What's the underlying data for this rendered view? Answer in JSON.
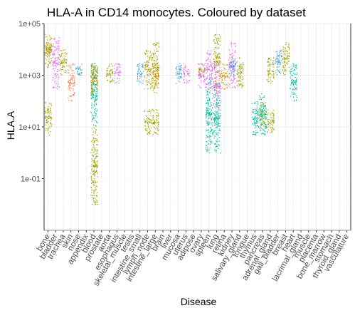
{
  "chart_data": {
    "type": "scatter",
    "title": "HLA-A in CD14 monocytes. Coloured by dataset",
    "xlabel": "Disease",
    "ylabel": "HLA.A",
    "y_scale": "log10",
    "ylim": [
      0.001,
      100000
    ],
    "y_ticks": [
      {
        "value": 0.1,
        "label": "1e-01"
      },
      {
        "value": 10,
        "label": "1e+01"
      },
      {
        "value": 1000,
        "label": "1e+03"
      },
      {
        "value": 100000,
        "label": "1e+05"
      }
    ],
    "grid": true,
    "legend": "none",
    "categories": [
      "bone",
      "bladder",
      "trachea",
      "skin",
      "nose",
      "appendix",
      "blood",
      "prostate",
      "aorta",
      "esophagus",
      "skeletal_muscle",
      "testis",
      "intestine_small",
      "lymph_node",
      "intestine_large",
      "brain",
      "liver",
      "mucosa",
      "uterus",
      "adipose",
      "ovary",
      "spleen",
      "lung",
      "retina",
      "kidney",
      "salivary_gland",
      "tongue",
      "thymus",
      "pancreas",
      "adrenal_gland",
      "gall_bladder",
      "breast",
      "heart",
      "lacrimal_gland",
      "muscle",
      "placenta",
      "bone_marrow",
      "stomach",
      "thyroid_gland",
      "vasculature"
    ],
    "series": [
      {
        "name": "",
        "color": "#9aa300",
        "segments": [
          {
            "cat": "bone",
            "low": 2000,
            "high": 40000
          },
          {
            "cat": "bone",
            "low": 5,
            "high": 100
          },
          {
            "cat": "trachea",
            "low": 1000,
            "high": 10000
          },
          {
            "cat": "blood",
            "low": 0.01,
            "high": 10
          },
          {
            "cat": "blood",
            "low": 300,
            "high": 3000
          },
          {
            "cat": "aorta",
            "low": 500,
            "high": 3000
          },
          {
            "cat": "lymph_node",
            "low": 300,
            "high": 10000
          },
          {
            "cat": "lymph_node",
            "low": 5,
            "high": 50
          },
          {
            "cat": "intestine_large",
            "low": 200,
            "high": 20000
          },
          {
            "cat": "intestine_large",
            "low": 5,
            "high": 50
          },
          {
            "cat": "ovary",
            "low": 1000,
            "high": 3000
          },
          {
            "cat": "lung",
            "low": 300,
            "high": 40000
          },
          {
            "cat": "salivary_gland",
            "low": 300,
            "high": 5000
          },
          {
            "cat": "pancreas",
            "low": 10,
            "high": 100
          },
          {
            "cat": "adrenal_gland",
            "low": 500,
            "high": 5000
          },
          {
            "cat": "adrenal_gland",
            "low": 5,
            "high": 50
          },
          {
            "cat": "breast",
            "low": 1000,
            "high": 20000
          }
        ]
      },
      {
        "name": "",
        "color": "#00c0a0",
        "segments": [
          {
            "cat": "blood",
            "low": 10,
            "high": 3000
          },
          {
            "cat": "spleen",
            "low": 1,
            "high": 1000
          },
          {
            "cat": "lung",
            "low": 1,
            "high": 500
          },
          {
            "cat": "thymus",
            "low": 5,
            "high": 100
          },
          {
            "cat": "pancreas",
            "low": 5,
            "high": 200
          },
          {
            "cat": "heart",
            "low": 100,
            "high": 3000
          }
        ]
      },
      {
        "name": "",
        "color": "#f37b59",
        "segments": [
          {
            "cat": "skin",
            "low": 100,
            "high": 3000
          }
        ]
      },
      {
        "name": "",
        "color": "#e76bf3",
        "segments": [
          {
            "cat": "bladder",
            "low": 300,
            "high": 30000
          },
          {
            "cat": "esophagus",
            "low": 500,
            "high": 3000
          },
          {
            "cat": "uterus",
            "low": 500,
            "high": 3000
          },
          {
            "cat": "ovary",
            "low": 300,
            "high": 3000
          },
          {
            "cat": "spleen",
            "low": 300,
            "high": 10000
          },
          {
            "cat": "lung",
            "low": 50,
            "high": 3000
          },
          {
            "cat": "kidney",
            "low": 300,
            "high": 20000
          }
        ]
      },
      {
        "name": "",
        "color": "#3fa0e0",
        "segments": [
          {
            "cat": "nose",
            "low": 1000,
            "high": 3000
          },
          {
            "cat": "intestine_small",
            "low": 500,
            "high": 3000
          },
          {
            "cat": "mucosa",
            "low": 500,
            "high": 3000
          },
          {
            "cat": "kidney",
            "low": 1000,
            "high": 5000
          },
          {
            "cat": "gall_bladder",
            "low": 1000,
            "high": 10000
          }
        ]
      },
      {
        "name": "",
        "color": "#d39200",
        "segments": [
          {
            "cat": "bone",
            "low": 5000,
            "high": 20000
          },
          {
            "cat": "blood",
            "low": 200,
            "high": 3000
          },
          {
            "cat": "intestine_large",
            "low": 300,
            "high": 3000
          },
          {
            "cat": "retina",
            "low": 300,
            "high": 3000
          }
        ]
      }
    ]
  }
}
